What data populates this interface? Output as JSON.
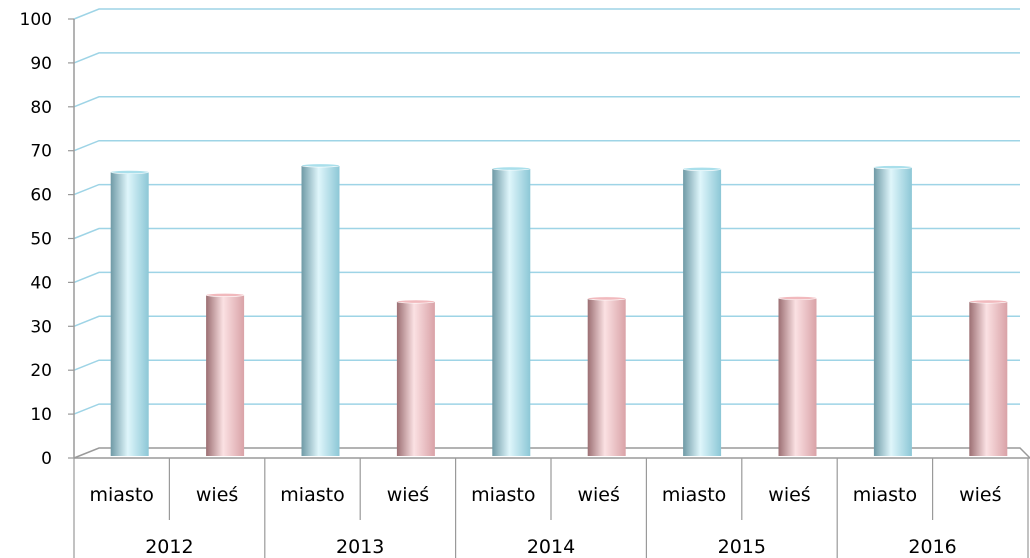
{
  "chart_data": {
    "type": "bar",
    "title": "",
    "xlabel": "",
    "ylabel": "",
    "ylim": [
      0,
      100
    ],
    "yticks": [
      0,
      10,
      20,
      30,
      40,
      50,
      60,
      70,
      80,
      90,
      100
    ],
    "ytick_labels": [
      "0",
      "10",
      "20",
      "30",
      "40",
      "50",
      "60",
      "70",
      "80",
      "90",
      "100"
    ],
    "grid": true,
    "legend": "none",
    "groups": [
      {
        "label": "2012",
        "bars": [
          {
            "category": "miasto",
            "value": 64
          },
          {
            "category": "wieś",
            "value": 36
          }
        ]
      },
      {
        "label": "2013",
        "bars": [
          {
            "category": "miasto",
            "value": 65.5
          },
          {
            "category": "wieś",
            "value": 34.5
          }
        ]
      },
      {
        "label": "2014",
        "bars": [
          {
            "category": "miasto",
            "value": 64.8
          },
          {
            "category": "wieś",
            "value": 35.2
          }
        ]
      },
      {
        "label": "2015",
        "bars": [
          {
            "category": "miasto",
            "value": 64.7
          },
          {
            "category": "wieś",
            "value": 35.3
          }
        ]
      },
      {
        "label": "2016",
        "bars": [
          {
            "category": "miasto",
            "value": 65.1
          },
          {
            "category": "wieś",
            "value": 34.5
          }
        ]
      }
    ],
    "colors": {
      "miasto": "#a9dfeb",
      "wieś": "#f1b9bd",
      "gridline": "#9ed4e6",
      "axis": "#9a9a9a"
    }
  }
}
